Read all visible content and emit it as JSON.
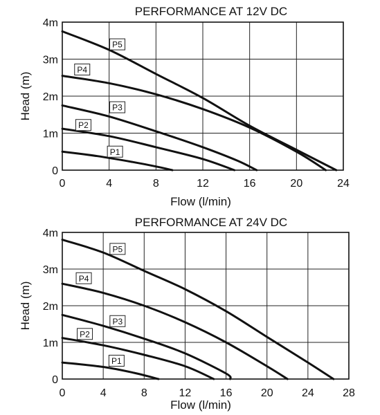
{
  "chart_data": [
    {
      "type": "line",
      "title": "PERFORMANCE AT 12V DC",
      "xlabel": "Flow (l/min)",
      "ylabel": "Head (m)",
      "xlim": [
        0,
        24
      ],
      "ylim": [
        0,
        4
      ],
      "xticks": [
        "0",
        "4",
        "8",
        "12",
        "16",
        "20",
        "24"
      ],
      "yticks": [
        "0",
        "1m",
        "2m",
        "3m",
        "4m"
      ],
      "grid": true,
      "series": [
        {
          "name": "P1",
          "label_at": [
            4.5,
            0.5
          ],
          "points": [
            [
              0,
              0.5
            ],
            [
              3,
              0.38
            ],
            [
              6,
              0.22
            ],
            [
              8,
              0.1
            ],
            [
              9.4,
              0
            ]
          ]
        },
        {
          "name": "P2",
          "label_at": [
            1.8,
            1.22
          ],
          "points": [
            [
              0,
              1.12
            ],
            [
              4,
              0.92
            ],
            [
              8,
              0.62
            ],
            [
              12,
              0.3
            ],
            [
              14.7,
              0
            ]
          ]
        },
        {
          "name": "P3",
          "label_at": [
            4.7,
            1.7
          ],
          "points": [
            [
              0,
              1.75
            ],
            [
              4,
              1.45
            ],
            [
              8,
              1.05
            ],
            [
              12,
              0.62
            ],
            [
              15,
              0.25
            ],
            [
              16.6,
              0
            ]
          ]
        },
        {
          "name": "P4",
          "label_at": [
            1.7,
            2.72
          ],
          "points": [
            [
              0,
              2.55
            ],
            [
              4,
              2.35
            ],
            [
              8,
              2.05
            ],
            [
              12,
              1.65
            ],
            [
              16,
              1.15
            ],
            [
              20,
              0.5
            ],
            [
              22.5,
              0
            ]
          ]
        },
        {
          "name": "P5",
          "label_at": [
            4.7,
            3.4
          ],
          "points": [
            [
              0,
              3.75
            ],
            [
              4,
              3.25
            ],
            [
              8,
              2.6
            ],
            [
              12,
              1.95
            ],
            [
              16,
              1.2
            ],
            [
              20,
              0.55
            ],
            [
              23.4,
              0
            ]
          ]
        }
      ]
    },
    {
      "type": "line",
      "title": "PERFORMANCE AT 24V DC",
      "xlabel": "Flow (l/min)",
      "ylabel": "Head (m)",
      "xlim": [
        0,
        28
      ],
      "ylim": [
        0,
        4
      ],
      "xticks": [
        "0",
        "4",
        "8",
        "12",
        "16",
        "20",
        "24",
        "28"
      ],
      "yticks": [
        "0",
        "1m",
        "2m",
        "3m",
        "4m"
      ],
      "grid": true,
      "series": [
        {
          "name": "P1",
          "label_at": [
            5.3,
            0.5
          ],
          "points": [
            [
              0,
              0.45
            ],
            [
              4,
              0.33
            ],
            [
              7,
              0.17
            ],
            [
              9.4,
              0
            ]
          ]
        },
        {
          "name": "P2",
          "label_at": [
            2.2,
            1.23
          ],
          "points": [
            [
              0,
              1.12
            ],
            [
              4,
              0.92
            ],
            [
              8,
              0.66
            ],
            [
              12,
              0.35
            ],
            [
              14.8,
              0
            ]
          ]
        },
        {
          "name": "P3",
          "label_at": [
            5.4,
            1.58
          ],
          "points": [
            [
              0,
              1.75
            ],
            [
              4,
              1.45
            ],
            [
              8,
              1.1
            ],
            [
              12,
              0.7
            ],
            [
              16,
              0.15
            ],
            [
              16.4,
              0
            ]
          ]
        },
        {
          "name": "P4",
          "label_at": [
            2.1,
            2.75
          ],
          "points": [
            [
              0,
              2.6
            ],
            [
              4,
              2.35
            ],
            [
              8,
              2.0
            ],
            [
              12,
              1.55
            ],
            [
              16,
              1.0
            ],
            [
              20,
              0.35
            ],
            [
              22,
              0
            ]
          ]
        },
        {
          "name": "P5",
          "label_at": [
            5.4,
            3.55
          ],
          "points": [
            [
              0,
              3.8
            ],
            [
              4,
              3.45
            ],
            [
              8,
              2.95
            ],
            [
              12,
              2.45
            ],
            [
              16,
              1.85
            ],
            [
              20,
              1.15
            ],
            [
              24,
              0.45
            ],
            [
              26.5,
              0
            ]
          ]
        }
      ]
    }
  ]
}
